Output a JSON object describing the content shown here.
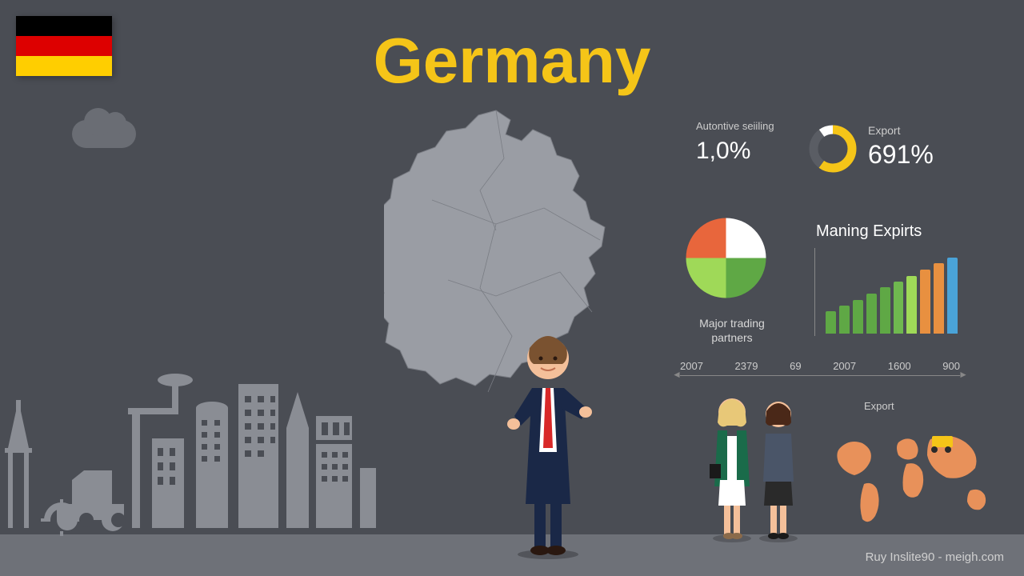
{
  "title": "Germany",
  "title_color": "#f5c518",
  "background": "#4a4d54",
  "flag": {
    "stripes": [
      "#000000",
      "#dd0000",
      "#ffce00"
    ]
  },
  "stat1": {
    "label": "Autontive seiiling",
    "value": "1,0%"
  },
  "donut": {
    "segments": [
      {
        "color": "#f5c518",
        "pct": 60
      },
      {
        "color": "#5a5d64",
        "pct": 30
      },
      {
        "color": "#ffffff",
        "pct": 10
      }
    ],
    "stroke": 11
  },
  "stat2": {
    "label": "Export",
    "value": "691%"
  },
  "pie": {
    "slices": [
      {
        "color": "#ffffff",
        "angle": 90
      },
      {
        "color": "#5fa845",
        "angle": 90
      },
      {
        "color": "#9fd958",
        "angle": 90
      },
      {
        "color": "#e8663c",
        "angle": 90
      }
    ]
  },
  "pie_label": "Major trading partners",
  "bar_chart": {
    "title": "Maning Expirts",
    "values": [
      28,
      35,
      42,
      50,
      58,
      65,
      72,
      80,
      88,
      95
    ],
    "colors": [
      "#5fa845",
      "#5fa845",
      "#5fa845",
      "#5fa845",
      "#5fa845",
      "#6fb84f",
      "#9fd958",
      "#e89040",
      "#e89040",
      "#4aa3d8"
    ]
  },
  "timeline": {
    "years": [
      "2007",
      "2379",
      "69",
      "2007",
      "1600",
      "900"
    ]
  },
  "export_label": "Export",
  "worldmap_color": "#e8915a",
  "skyline_color": "#8a8d94",
  "map_color": "#9a9da4",
  "footer": "Ruy Inslite90 - meigh.com"
}
